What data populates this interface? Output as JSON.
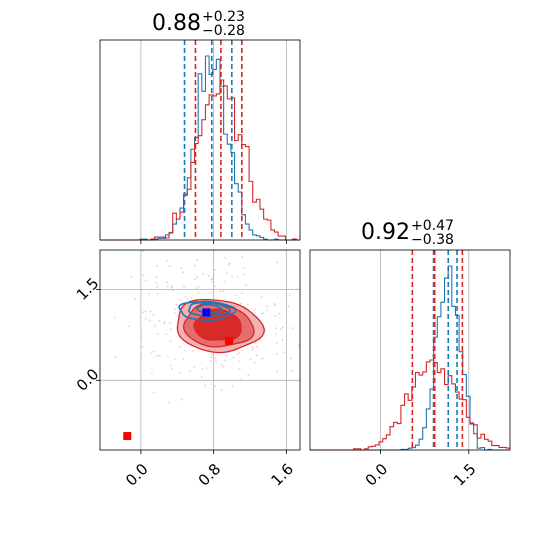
{
  "chart_data": {
    "type": "corner",
    "parameters": [
      {
        "title_value": "0.88",
        "title_plus": "+0.23",
        "title_minus": "−0.28",
        "xlim": [
          -0.45,
          1.75
        ],
        "xticks": [
          {
            "value": 0.0,
            "label": "0.0"
          },
          {
            "value": 0.8,
            "label": "0.8"
          },
          {
            "value": 1.6,
            "label": "1.6"
          }
        ]
      },
      {
        "title_value": "0.92",
        "title_plus": "+0.47",
        "title_minus": "−0.38",
        "xlim": [
          -1.2,
          2.2
        ],
        "xticks": [
          {
            "value": 0.0,
            "label": "0.0"
          },
          {
            "value": 1.5,
            "label": "1.5"
          }
        ]
      }
    ],
    "joint_panel": {
      "xlim": [
        -0.45,
        1.75
      ],
      "ylim": [
        -1.15,
        2.15
      ],
      "yticks": [
        {
          "value": 0.0,
          "label": "0.0"
        },
        {
          "value": 1.5,
          "label": "1.5"
        }
      ],
      "blue_marker": [
        0.72,
        1.12
      ],
      "red_markers": [
        [
          0.97,
          0.65
        ],
        [
          -0.15,
          -0.92
        ]
      ]
    },
    "series": [
      {
        "color": "#1f77b4",
        "param1_hist_center": 0.78,
        "param1_hist_sd": 0.18,
        "param1_quantiles": [
          0.48,
          0.78,
          1.0
        ],
        "param2_hist_center": 1.15,
        "param2_hist_sd": 0.2,
        "param2_quantiles": [
          0.9,
          1.15,
          1.3
        ],
        "joint_center": [
          0.72,
          1.15
        ],
        "joint_spread": [
          0.32,
          0.18
        ]
      },
      {
        "color": "#d62728",
        "param1_hist_center": 0.88,
        "param1_hist_sd": 0.24,
        "param1_quantiles": [
          0.6,
          0.88,
          1.11
        ],
        "param2_hist_center": 0.92,
        "param2_hist_sd": 0.42,
        "param2_quantiles": [
          0.54,
          0.92,
          1.39
        ],
        "joint_center": [
          0.85,
          0.9
        ],
        "joint_spread": [
          0.36,
          0.42
        ]
      }
    ],
    "colors": {
      "blue": "#1f77b4",
      "red": "#d62728",
      "red_fill_light": "#f2b2b2",
      "red_fill_mid": "#e56d6d",
      "red_fill_dark": "#d92a2a",
      "grid": "#b0b0b0"
    },
    "grid": true
  }
}
